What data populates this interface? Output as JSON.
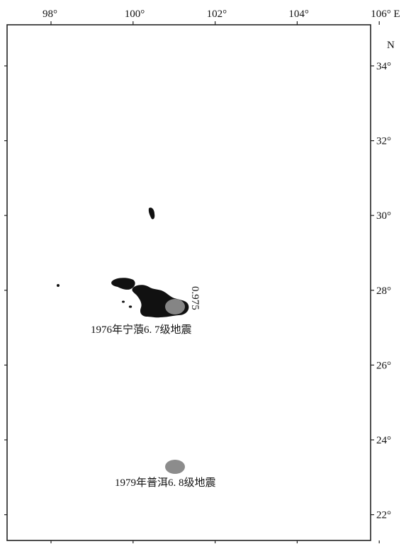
{
  "map": {
    "lon_ticks": [
      {
        "value": 98,
        "label": "98°"
      },
      {
        "value": 100,
        "label": "100°"
      },
      {
        "value": 102,
        "label": "102°"
      },
      {
        "value": 104,
        "label": "104°"
      },
      {
        "value": 106,
        "label": "106° E"
      }
    ],
    "lat_ticks": [
      {
        "value": 34,
        "label": "34°"
      },
      {
        "value": 32,
        "label": "32°"
      },
      {
        "value": 30,
        "label": "30°"
      },
      {
        "value": 28,
        "label": "28°"
      },
      {
        "value": 26,
        "label": "26°"
      },
      {
        "value": 24,
        "label": "24°"
      },
      {
        "value": 22,
        "label": "22°"
      }
    ],
    "north_label": "N",
    "lon_range": [
      97.5,
      106
    ],
    "lat_range": [
      21.3,
      35.3
    ],
    "colors": {
      "anomaly": "#111111",
      "epicenter": "#8c8c8c",
      "frame": "#222222"
    }
  },
  "annotations": {
    "ninglang_label": "1976年宁蒗6. 7级地震",
    "puer_label": "1979年普洱6. 8级地震",
    "contour_value": "0.975"
  },
  "features": {
    "epicenters": [
      {
        "name": "ninglang",
        "lon": 101.1,
        "lat": 27.75
      },
      {
        "name": "puer",
        "lon": 101.05,
        "lat": 23.25
      }
    ]
  }
}
